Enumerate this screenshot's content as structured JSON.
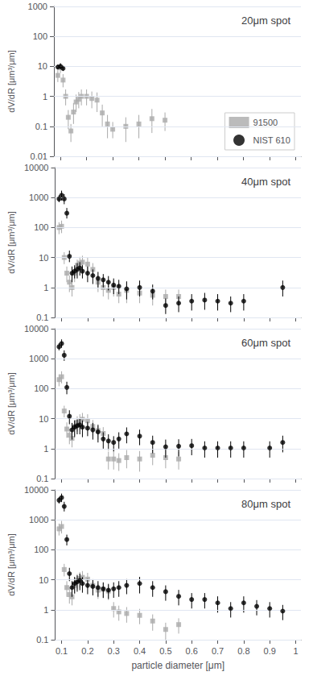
{
  "chart_data": [
    {
      "type": "scatter",
      "title": "20μm spot",
      "ylabel": "dV/dR [μm³/μm]",
      "xlim": [
        0.075,
        1.02
      ],
      "xticks": [
        0.1,
        0.2,
        0.3,
        0.4,
        0.5,
        0.6,
        0.7,
        0.8,
        0.9,
        1.0
      ],
      "ylim": [
        0.01,
        1000
      ],
      "yticks": [
        0.01,
        0.1,
        1,
        10,
        100,
        1000
      ],
      "log": "y",
      "grid": true,
      "legend": "lower right",
      "tick_labels": "y",
      "series": [
        {
          "name": "91500",
          "color": "#aaaaaa",
          "marker": "square",
          "x": [
            0.09,
            0.1,
            0.11,
            0.12,
            0.13,
            0.14,
            0.15,
            0.16,
            0.17,
            0.18,
            0.2,
            0.22,
            0.24,
            0.26,
            0.28,
            0.3,
            0.35,
            0.4,
            0.45,
            0.5
          ],
          "values": [
            5.0,
            9.0,
            3.5,
            1.0,
            0.2,
            0.07,
            0.3,
            0.65,
            0.8,
            1.0,
            1.0,
            0.85,
            0.75,
            0.28,
            0.12,
            0.08,
            0.1,
            0.12,
            0.18,
            0.16
          ],
          "yerr_lo": [
            2.0,
            3.0,
            1.5,
            0.5,
            0.12,
            0.04,
            0.18,
            0.35,
            0.4,
            0.5,
            0.5,
            0.45,
            0.45,
            0.18,
            0.08,
            0.04,
            0.07,
            0.08,
            0.12,
            0.09
          ],
          "yerr_hi": [
            3.0,
            4.0,
            2.0,
            0.7,
            0.15,
            0.05,
            0.3,
            0.5,
            0.6,
            0.7,
            0.7,
            0.6,
            0.6,
            0.25,
            0.12,
            0.06,
            0.1,
            0.12,
            0.2,
            0.13
          ]
        },
        {
          "name": "NIST 610",
          "color": "#000000",
          "marker": "circle",
          "x": [
            0.09,
            0.1,
            0.11
          ],
          "values": [
            9.5,
            10.0,
            8.5
          ],
          "yerr_lo": [
            1.5,
            2.0,
            1.5
          ],
          "yerr_hi": [
            2.0,
            2.5,
            2.0
          ]
        }
      ]
    },
    {
      "type": "scatter",
      "title": "40μm spot",
      "ylabel": "dV/dR [μm³/μm]",
      "xlim": [
        0.075,
        1.02
      ],
      "xticks": [
        0.1,
        0.2,
        0.3,
        0.4,
        0.5,
        0.6,
        0.7,
        0.8,
        0.9,
        1.0
      ],
      "ylim": [
        0.1,
        10000
      ],
      "yticks": [
        0.1,
        1,
        10,
        100,
        1000,
        10000
      ],
      "log": "y",
      "grid": true,
      "tick_labels": "y",
      "series": [
        {
          "name": "91500",
          "color": "#aaaaaa",
          "marker": "square",
          "x": [
            0.09,
            0.1,
            0.11,
            0.12,
            0.13,
            0.14,
            0.15,
            0.16,
            0.17,
            0.18,
            0.2,
            0.22,
            0.24,
            0.26,
            0.28,
            0.3,
            0.32,
            0.35,
            0.4,
            0.45,
            0.5,
            0.55
          ],
          "values": [
            100,
            110,
            10,
            3.0,
            1.5,
            1.0,
            3.0,
            5.5,
            6.5,
            7.0,
            6.0,
            4.0,
            1.5,
            1.0,
            0.8,
            1.0,
            0.6,
            0.8,
            0.65,
            0.55,
            0.5,
            0.5
          ],
          "yerr_lo": [
            40,
            45,
            4,
            1.5,
            0.8,
            0.5,
            1.5,
            2.5,
            3.0,
            3.5,
            3.0,
            2.0,
            0.8,
            0.5,
            0.4,
            0.5,
            0.3,
            0.5,
            0.35,
            0.3,
            0.25,
            0.25
          ],
          "yerr_hi": [
            50,
            60,
            5,
            2.0,
            1.0,
            0.7,
            2.0,
            3.0,
            4.0,
            4.5,
            4.0,
            2.5,
            1.0,
            0.7,
            0.5,
            0.7,
            0.4,
            0.7,
            0.5,
            0.4,
            0.35,
            0.35
          ]
        },
        {
          "name": "NIST 610",
          "color": "#000000",
          "marker": "circle",
          "x": [
            0.09,
            0.1,
            0.11,
            0.12,
            0.13,
            0.14,
            0.15,
            0.16,
            0.17,
            0.18,
            0.2,
            0.22,
            0.24,
            0.26,
            0.28,
            0.3,
            0.32,
            0.35,
            0.4,
            0.45,
            0.5,
            0.55,
            0.6,
            0.65,
            0.7,
            0.75,
            0.8,
            0.95
          ],
          "values": [
            900,
            1200,
            900,
            300,
            11,
            3.0,
            3.5,
            4.0,
            4.5,
            3.5,
            3.0,
            2.5,
            2.0,
            1.8,
            1.5,
            1.2,
            1.1,
            0.9,
            1.0,
            0.75,
            0.25,
            0.3,
            0.35,
            0.38,
            0.35,
            0.3,
            0.35,
            1.0
          ],
          "yerr_lo": [
            200,
            400,
            300,
            100,
            4,
            1.5,
            1.5,
            2.0,
            2.0,
            1.5,
            1.5,
            1.2,
            1.0,
            0.8,
            0.7,
            0.6,
            0.5,
            0.5,
            0.5,
            0.35,
            0.12,
            0.15,
            0.18,
            0.2,
            0.18,
            0.15,
            0.18,
            0.5
          ],
          "yerr_hi": [
            300,
            500,
            400,
            150,
            6,
            2.0,
            2.0,
            2.5,
            2.5,
            2.0,
            2.0,
            1.5,
            1.3,
            1.0,
            0.9,
            0.8,
            0.7,
            0.7,
            0.7,
            0.5,
            0.18,
            0.2,
            0.25,
            0.28,
            0.25,
            0.2,
            0.25,
            0.7
          ]
        }
      ]
    },
    {
      "type": "scatter",
      "title": "60μm spot",
      "ylabel": "dV/dR [μm³/μm]",
      "xlim": [
        0.075,
        1.02
      ],
      "xticks": [
        0.1,
        0.2,
        0.3,
        0.4,
        0.5,
        0.6,
        0.7,
        0.8,
        0.9,
        1.0
      ],
      "ylim": [
        0.1,
        10000
      ],
      "yticks": [
        0.1,
        1,
        10,
        100,
        1000,
        10000
      ],
      "log": "y",
      "grid": true,
      "tick_labels": "y",
      "series": [
        {
          "name": "91500",
          "color": "#aaaaaa",
          "marker": "square",
          "x": [
            0.09,
            0.1,
            0.11,
            0.12,
            0.13,
            0.14,
            0.15,
            0.16,
            0.17,
            0.18,
            0.2,
            0.22,
            0.24,
            0.26,
            0.28,
            0.3,
            0.32,
            0.35,
            0.4,
            0.45,
            0.5,
            0.55
          ],
          "values": [
            200,
            250,
            18,
            4.5,
            2.8,
            2.2,
            5.5,
            7.5,
            8.5,
            9.5,
            8.5,
            5.5,
            4.0,
            3.2,
            0.45,
            0.45,
            0.4,
            0.5,
            0.45,
            0.6,
            0.5,
            0.45
          ],
          "yerr_lo": [
            80,
            100,
            7,
            2.2,
            1.4,
            1.1,
            2.8,
            3.8,
            4.2,
            4.8,
            4.2,
            2.8,
            2.0,
            1.6,
            0.25,
            0.25,
            0.22,
            0.28,
            0.28,
            0.32,
            0.28,
            0.25
          ],
          "yerr_hi": [
            100,
            130,
            9,
            3.0,
            1.8,
            1.5,
            3.5,
            4.5,
            5.5,
            6.0,
            5.5,
            3.5,
            2.5,
            2.0,
            0.35,
            0.35,
            0.3,
            0.4,
            0.38,
            0.45,
            0.38,
            0.35
          ]
        },
        {
          "name": "NIST 610",
          "color": "#000000",
          "marker": "circle",
          "x": [
            0.09,
            0.1,
            0.11,
            0.12,
            0.13,
            0.14,
            0.15,
            0.16,
            0.17,
            0.18,
            0.2,
            0.22,
            0.24,
            0.26,
            0.28,
            0.3,
            0.32,
            0.35,
            0.4,
            0.45,
            0.5,
            0.55,
            0.6,
            0.65,
            0.7,
            0.75,
            0.8,
            0.9,
            0.95
          ],
          "values": [
            2500,
            3200,
            1300,
            110,
            12,
            4.2,
            5.2,
            5.8,
            6.2,
            5.2,
            4.8,
            4.2,
            3.6,
            2.1,
            1.8,
            1.6,
            2.1,
            3.1,
            2.6,
            1.6,
            1.15,
            1.2,
            1.25,
            1.05,
            1.05,
            1.05,
            1.05,
            1.05,
            1.6
          ],
          "yerr_lo": [
            600,
            900,
            450,
            45,
            5.5,
            2.2,
            2.8,
            2.8,
            3.2,
            2.8,
            2.2,
            2.2,
            2.0,
            1.1,
            0.9,
            0.8,
            1.1,
            1.6,
            1.3,
            0.9,
            0.65,
            0.65,
            0.65,
            0.55,
            0.55,
            0.55,
            0.55,
            0.55,
            0.85
          ],
          "yerr_hi": [
            800,
            1200,
            600,
            60,
            7,
            3.0,
            3.5,
            3.5,
            4.0,
            3.5,
            3.0,
            3.0,
            2.5,
            1.4,
            1.2,
            1.0,
            1.4,
            2.0,
            1.7,
            1.1,
            0.85,
            0.85,
            0.85,
            0.7,
            0.7,
            0.7,
            0.7,
            0.7,
            1.1
          ]
        }
      ]
    },
    {
      "type": "scatter",
      "title": "80μm spot",
      "ylabel": "dV/dR [μm³/μm]",
      "xlabel": "particle diameter [μm]",
      "xlim": [
        0.075,
        1.02
      ],
      "xticks": [
        0.1,
        0.2,
        0.3,
        0.4,
        0.5,
        0.6,
        0.7,
        0.8,
        0.9,
        1.0
      ],
      "ylim": [
        0.1,
        10000
      ],
      "yticks": [
        0.1,
        1,
        10,
        100,
        1000,
        10000
      ],
      "log": "y",
      "grid": true,
      "series": [
        {
          "name": "91500",
          "color": "#aaaaaa",
          "marker": "square",
          "x": [
            0.09,
            0.1,
            0.11,
            0.12,
            0.13,
            0.14,
            0.15,
            0.16,
            0.17,
            0.18,
            0.2,
            0.22,
            0.24,
            0.26,
            0.28,
            0.3,
            0.32,
            0.35,
            0.4,
            0.45,
            0.5,
            0.55
          ],
          "values": [
            500,
            600,
            22,
            5.5,
            3.2,
            2.7,
            6.5,
            9.5,
            11.0,
            12.0,
            10.5,
            6.5,
            4.5,
            4.8,
            4.2,
            1.1,
            0.85,
            0.75,
            0.65,
            0.42,
            0.22,
            0.32
          ],
          "yerr_lo": [
            200,
            250,
            9,
            2.8,
            1.6,
            1.3,
            3.2,
            4.8,
            5.5,
            6.0,
            5.2,
            3.2,
            2.2,
            2.4,
            2.1,
            0.55,
            0.42,
            0.38,
            0.32,
            0.22,
            0.12,
            0.16
          ],
          "yerr_hi": [
            250,
            320,
            12,
            3.5,
            2.0,
            1.7,
            4.0,
            6.0,
            7.0,
            7.5,
            6.5,
            4.0,
            2.8,
            3.0,
            2.6,
            0.7,
            0.52,
            0.48,
            0.42,
            0.28,
            0.15,
            0.2
          ]
        },
        {
          "name": "NIST 610",
          "color": "#000000",
          "marker": "circle",
          "x": [
            0.09,
            0.1,
            0.11,
            0.12,
            0.13,
            0.14,
            0.15,
            0.16,
            0.17,
            0.18,
            0.2,
            0.22,
            0.24,
            0.26,
            0.28,
            0.3,
            0.32,
            0.35,
            0.4,
            0.45,
            0.5,
            0.55,
            0.6,
            0.65,
            0.7,
            0.75,
            0.8,
            0.85,
            0.9,
            0.95
          ],
          "values": [
            4500,
            5500,
            2800,
            220,
            16,
            5.5,
            7.5,
            8.5,
            9.5,
            7.5,
            6.5,
            6.0,
            5.5,
            5.0,
            4.5,
            5.0,
            5.5,
            6.5,
            7.5,
            5.5,
            4.0,
            2.8,
            2.2,
            2.2,
            1.7,
            1.1,
            1.7,
            1.3,
            1.1,
            0.9
          ],
          "yerr_lo": [
            1000,
            1600,
            900,
            80,
            7,
            2.8,
            4.0,
            4.5,
            5.0,
            3.8,
            3.2,
            3.0,
            2.8,
            2.5,
            2.2,
            2.5,
            2.8,
            3.2,
            4.0,
            2.8,
            2.0,
            1.4,
            1.1,
            1.1,
            0.9,
            0.55,
            0.9,
            0.65,
            0.55,
            0.45
          ],
          "yerr_hi": [
            1300,
            2000,
            1200,
            100,
            9,
            3.5,
            5.0,
            5.5,
            6.5,
            4.8,
            4.0,
            3.8,
            3.5,
            3.2,
            2.8,
            3.2,
            3.5,
            4.0,
            5.0,
            3.5,
            2.5,
            1.8,
            1.4,
            1.4,
            1.1,
            0.7,
            1.1,
            0.8,
            0.7,
            0.55
          ]
        }
      ]
    }
  ]
}
